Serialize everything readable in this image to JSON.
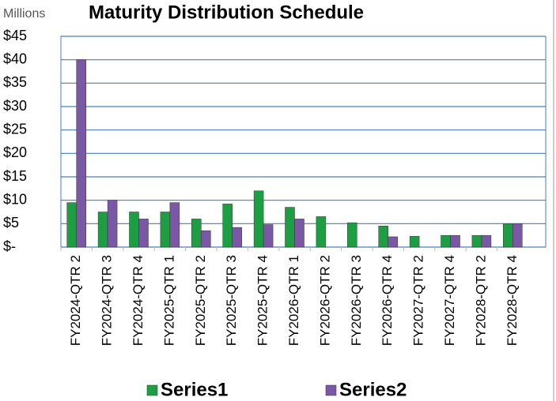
{
  "chart_data": {
    "type": "bar",
    "title": "Maturity Distribution Schedule",
    "y_unit_label": "Millions",
    "categories": [
      "FY2024-QTR 2",
      "FY2024-QTR 3",
      "FY2024-QTR 4",
      "FY2025-QTR 1",
      "FY2025-QTR 2",
      "FY2025-QTR 3",
      "FY2025-QTR 4",
      "FY2026-QTR 1",
      "FY2026-QTR 2",
      "FY2026-QTR 3",
      "FY2026-QTR 4",
      "FY2027-QTR 2",
      "FY2027-QTR 4",
      "FY2028-QTR 2",
      "FY2028-QTR 4"
    ],
    "series": [
      {
        "name": "Series1",
        "color": "#1e9e43",
        "values": [
          9.5,
          7.5,
          7.5,
          7.5,
          6,
          9.2,
          12,
          8.5,
          6.5,
          5.2,
          4.5,
          2.3,
          2.5,
          2.5,
          5
        ]
      },
      {
        "name": "Series2",
        "color": "#7b58a6",
        "values": [
          40,
          10,
          6,
          9.5,
          3.5,
          4.2,
          4.8,
          6,
          0,
          0,
          2.2,
          0,
          2.5,
          2.5,
          5
        ]
      }
    ],
    "ylim": [
      0,
      45
    ],
    "yticks": [
      {
        "value": 0,
        "label": "$-"
      },
      {
        "value": 5,
        "label": "$5"
      },
      {
        "value": 10,
        "label": "$10"
      },
      {
        "value": 15,
        "label": "$15"
      },
      {
        "value": 20,
        "label": "$20"
      },
      {
        "value": 25,
        "label": "$25"
      },
      {
        "value": 30,
        "label": "$30"
      },
      {
        "value": 35,
        "label": "$35"
      },
      {
        "value": 40,
        "label": "$40"
      },
      {
        "value": 45,
        "label": "$45"
      }
    ],
    "grid": true,
    "legend": "bottom"
  }
}
